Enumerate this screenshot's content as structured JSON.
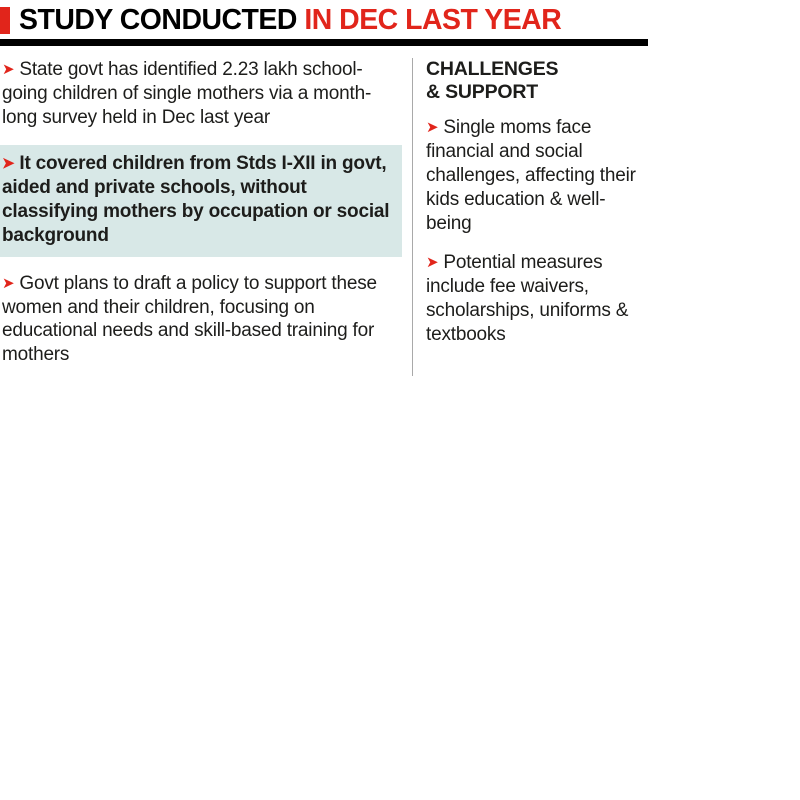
{
  "title": {
    "black": "STUDY CONDUCTED ",
    "red": "IN DEC LAST YEAR"
  },
  "icons": {
    "bullet": "➤"
  },
  "colors": {
    "accent_red": "#e1251b",
    "highlight_bg": "#d8e8e7",
    "rule_black": "#000000",
    "text": "#1d1d1b"
  },
  "left_column": {
    "items": [
      {
        "text": "State govt has identified 2.23 lakh school-going children of single mothers via a month-long survey held in Dec last year",
        "highlight": false
      },
      {
        "text": "It covered children from Stds I-XII in govt, aided and private schools, without classifying mothers by occupation or social background",
        "highlight": true
      },
      {
        "text": "Govt plans to draft a policy to support these women and their children, focusing on educational needs and skill-based training for mothers",
        "highlight": false
      }
    ]
  },
  "right_column": {
    "heading": "CHALLENGES & SUPPORT",
    "items": [
      {
        "text": "Single moms face financial and social challenges, affecting their kids education & well-being"
      },
      {
        "text": "Potential measures include fee waivers, scholarships, uniforms & textbooks"
      }
    ]
  }
}
